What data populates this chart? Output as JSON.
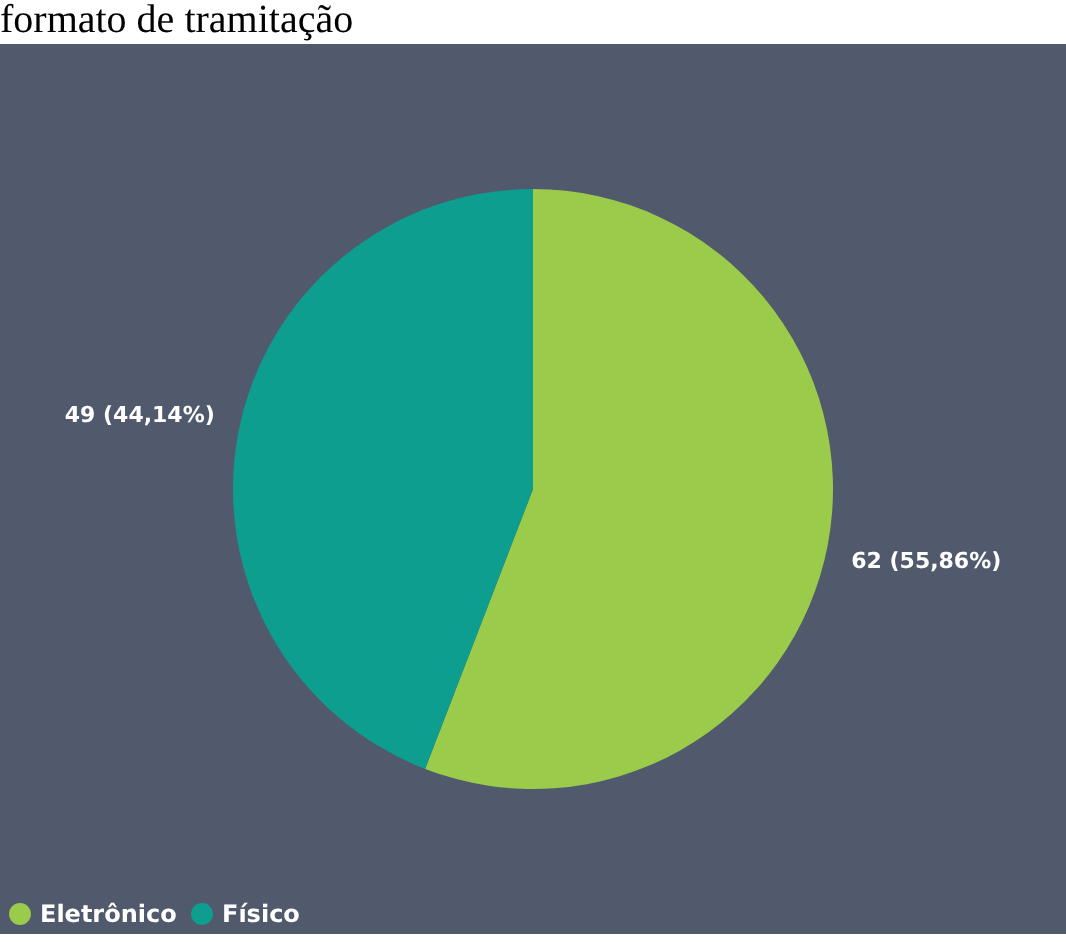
{
  "chart_data": {
    "type": "pie",
    "title": "formato de tramitação",
    "categories": [
      "Eletrônico",
      "Físico"
    ],
    "values": [
      62,
      49
    ],
    "colors": [
      "#9bcb4b",
      "#0d9e8f"
    ],
    "value_labels": [
      "62 (55,86%)",
      "49 (44,14%)"
    ],
    "legend": "bottom left"
  }
}
